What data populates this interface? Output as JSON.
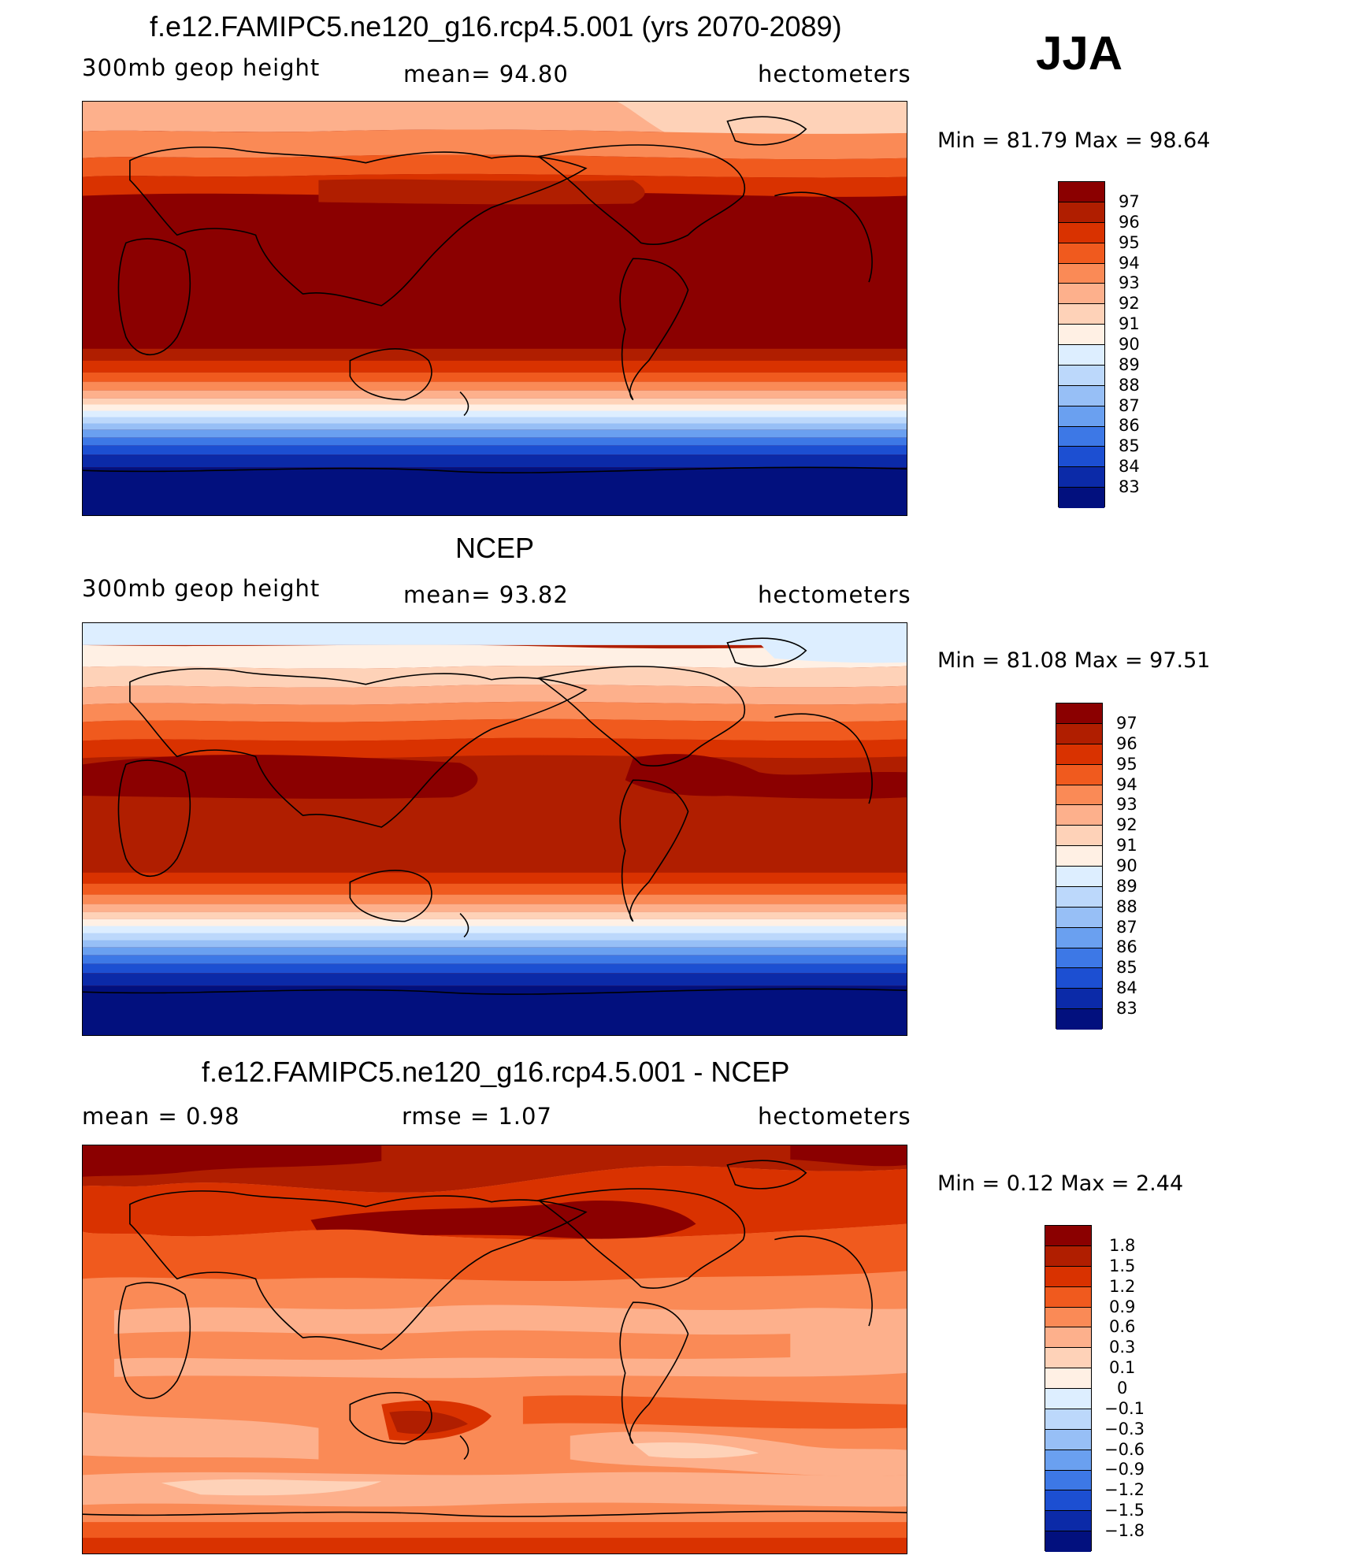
{
  "season": "JJA",
  "units_label": "hectometers",
  "panels": [
    {
      "title": "f.e12.FAMIPC5.ne120_g16.rcp4.5.001 (yrs 2070-2089)",
      "left_label": "300mb  geop  height",
      "mid_label": "mean=   94.80",
      "right_label": "hectometers",
      "minmax": "Min  =    81.79  Max  =    98.64",
      "colorbar": {
        "labels": [
          "97",
          "96",
          "95",
          "94",
          "93",
          "92",
          "91",
          "90",
          "89",
          "88",
          "87",
          "86",
          "85",
          "84",
          "83"
        ],
        "colors": [
          "#8b0000",
          "#b01e00",
          "#d93200",
          "#f05a1e",
          "#fa8a56",
          "#fdb08c",
          "#fed2b8",
          "#fff0e4",
          "#ddeeff",
          "#bcd8fb",
          "#97bff6",
          "#6aa0f0",
          "#3d78e6",
          "#1c4fd2",
          "#0b2aa8",
          "#02107e"
        ]
      }
    },
    {
      "title": "NCEP",
      "left_label": "300mb  geop  height",
      "mid_label": "mean=   93.82",
      "right_label": "hectometers",
      "minmax": "Min  =    81.08  Max  =    97.51",
      "colorbar": {
        "labels": [
          "97",
          "96",
          "95",
          "94",
          "93",
          "92",
          "91",
          "90",
          "89",
          "88",
          "87",
          "86",
          "85",
          "84",
          "83"
        ],
        "colors": [
          "#8b0000",
          "#b01e00",
          "#d93200",
          "#f05a1e",
          "#fa8a56",
          "#fdb08c",
          "#fed2b8",
          "#fff0e4",
          "#ddeeff",
          "#bcd8fb",
          "#97bff6",
          "#6aa0f0",
          "#3d78e6",
          "#1c4fd2",
          "#0b2aa8",
          "#02107e"
        ]
      }
    },
    {
      "title": "f.e12.FAMIPC5.ne120_g16.rcp4.5.001 - NCEP",
      "left_label": "mean  =      0.98",
      "mid_label": "rmse  =      1.07",
      "right_label": "hectometers",
      "minmax": "Min  =     0.12  Max  =      2.44",
      "colorbar": {
        "labels": [
          "1.8",
          "1.5",
          "1.2",
          "0.9",
          "0.6",
          "0.3",
          "0.1",
          "0",
          "−0.1",
          "−0.3",
          "−0.6",
          "−0.9",
          "−1.2",
          "−1.5",
          "−1.8"
        ],
        "colors": [
          "#8b0000",
          "#b01e00",
          "#d93200",
          "#f05a1e",
          "#fa8a56",
          "#fdb08c",
          "#fed2b8",
          "#fff0e4",
          "#ddeeff",
          "#bcd8fb",
          "#97bff6",
          "#6aa0f0",
          "#3d78e6",
          "#1c4fd2",
          "#0b2aa8",
          "#02107e"
        ]
      }
    }
  ]
}
